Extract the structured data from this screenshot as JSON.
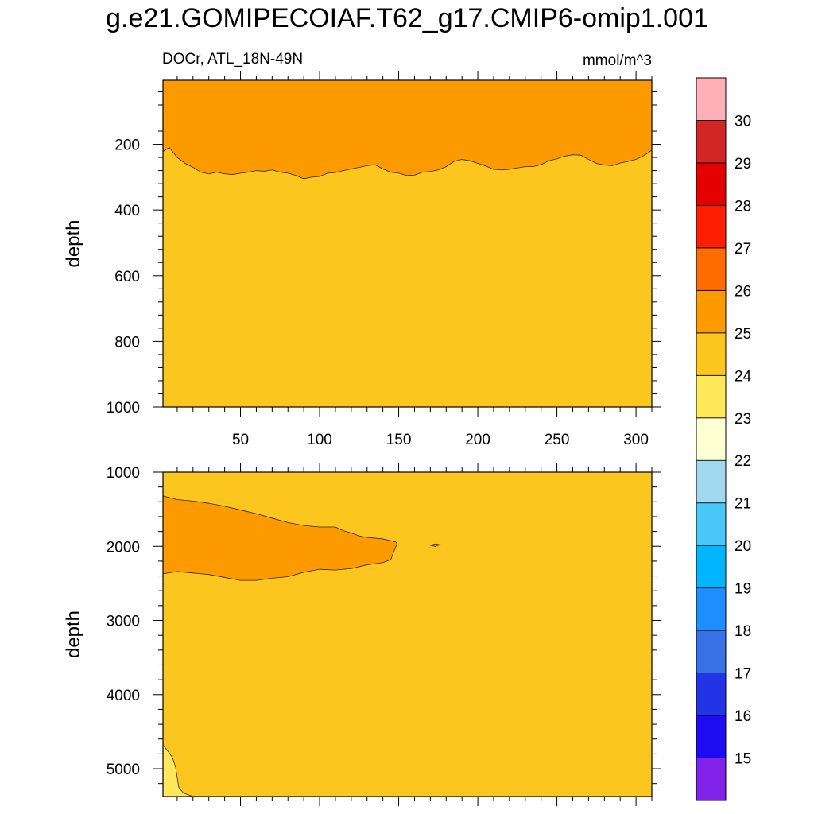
{
  "title": "g.e21.GOMIPECOIAF.T62_g17.CMIP6-omip1.001",
  "subtitle_left": "DOCr, ATL_18N-49N",
  "subtitle_right": "mmol/m^3",
  "colors": {
    "band_23_24": "#ffe85a",
    "band_24_25": "#fcc61f",
    "band_25_26": "#fc9a00",
    "contour_line": "#2a2a2a"
  },
  "chart_data": [
    {
      "type": "contour",
      "panel": "upper",
      "variable": "DOCr",
      "region": "ATL_18N-49N",
      "units": "mmol/m^3",
      "xlabel": "",
      "ylabel": "depth",
      "xlim": [
        1,
        310
      ],
      "ylim": [
        1000,
        5
      ],
      "x_ticks": [
        50,
        100,
        150,
        200,
        250,
        300
      ],
      "x_tick_labels": [
        "50",
        "100",
        "150",
        "200",
        "250",
        "300"
      ],
      "y_ticks": [
        200,
        400,
        600,
        800,
        1000
      ],
      "y_tick_labels": [
        "200",
        "400",
        "600",
        "800",
        "1000"
      ],
      "background_band": "24-25",
      "regions": [
        {
          "band": "25-26",
          "description": "upper layer above 25 contour",
          "lower_boundary_depth": [
            [
              1,
              222
            ],
            [
              5,
              210
            ],
            [
              10,
              240
            ],
            [
              15,
              258
            ],
            [
              20,
              270
            ],
            [
              25,
              285
            ],
            [
              30,
              290
            ],
            [
              35,
              285
            ],
            [
              40,
              290
            ],
            [
              45,
              292
            ],
            [
              50,
              288
            ],
            [
              55,
              285
            ],
            [
              60,
              280
            ],
            [
              65,
              282
            ],
            [
              70,
              278
            ],
            [
              75,
              285
            ],
            [
              80,
              288
            ],
            [
              85,
              295
            ],
            [
              90,
              305
            ],
            [
              95,
              300
            ],
            [
              100,
              298
            ],
            [
              105,
              288
            ],
            [
              110,
              286
            ],
            [
              115,
              280
            ],
            [
              120,
              275
            ],
            [
              125,
              270
            ],
            [
              130,
              265
            ],
            [
              135,
              262
            ],
            [
              140,
              275
            ],
            [
              145,
              285
            ],
            [
              150,
              288
            ],
            [
              155,
              295
            ],
            [
              160,
              294
            ],
            [
              165,
              285
            ],
            [
              170,
              283
            ],
            [
              175,
              278
            ],
            [
              180,
              268
            ],
            [
              185,
              252
            ],
            [
              190,
              246
            ],
            [
              195,
              250
            ],
            [
              200,
              258
            ],
            [
              205,
              266
            ],
            [
              210,
              276
            ],
            [
              215,
              278
            ],
            [
              220,
              276
            ],
            [
              225,
              272
            ],
            [
              230,
              268
            ],
            [
              235,
              268
            ],
            [
              240,
              262
            ],
            [
              245,
              250
            ],
            [
              250,
              244
            ],
            [
              255,
              236
            ],
            [
              260,
              232
            ],
            [
              265,
              233
            ],
            [
              270,
              246
            ],
            [
              275,
              258
            ],
            [
              280,
              263
            ],
            [
              285,
              265
            ],
            [
              290,
              257
            ],
            [
              295,
              252
            ],
            [
              300,
              246
            ],
            [
              305,
              234
            ],
            [
              310,
              218
            ]
          ]
        }
      ]
    },
    {
      "type": "contour",
      "panel": "lower",
      "variable": "DOCr",
      "region": "ATL_18N-49N",
      "units": "mmol/m^3",
      "xlabel": "",
      "ylabel": "depth",
      "xlim": [
        1,
        310
      ],
      "ylim": [
        1000,
        5375
      ],
      "x_ticks": [
        50,
        100,
        150,
        200,
        250,
        300
      ],
      "x_tick_labels": [
        "",
        "",
        "",
        "",
        "",
        ""
      ],
      "y_ticks": [
        1000,
        2000,
        3000,
        4000,
        5000
      ],
      "y_tick_labels": [
        "1000",
        "2000",
        "3000",
        "4000",
        "5000"
      ],
      "background_band": "24-25",
      "regions": [
        {
          "band": "25-26",
          "description": "intermediate-depth tongue",
          "polygon": [
            [
              1,
              1320
            ],
            [
              10,
              1370
            ],
            [
              20,
              1390
            ],
            [
              30,
              1420
            ],
            [
              40,
              1460
            ],
            [
              50,
              1510
            ],
            [
              60,
              1560
            ],
            [
              70,
              1620
            ],
            [
              80,
              1680
            ],
            [
              90,
              1720
            ],
            [
              100,
              1740
            ],
            [
              110,
              1740
            ],
            [
              115,
              1790
            ],
            [
              120,
              1820
            ],
            [
              125,
              1860
            ],
            [
              130,
              1880
            ],
            [
              140,
              1900
            ],
            [
              148,
              1940
            ],
            [
              149,
              1960
            ],
            [
              147,
              2070
            ],
            [
              145,
              2180
            ],
            [
              140,
              2220
            ],
            [
              130,
              2250
            ],
            [
              120,
              2300
            ],
            [
              110,
              2320
            ],
            [
              100,
              2310
            ],
            [
              90,
              2350
            ],
            [
              80,
              2410
            ],
            [
              70,
              2430
            ],
            [
              60,
              2460
            ],
            [
              50,
              2460
            ],
            [
              40,
              2420
            ],
            [
              30,
              2380
            ],
            [
              20,
              2360
            ],
            [
              10,
              2340
            ],
            [
              1,
              2370
            ]
          ]
        },
        {
          "band": "25-26",
          "description": "small isolated patch",
          "polygon": [
            [
              170,
              1985
            ],
            [
              173,
              1968
            ],
            [
              176,
              1978
            ],
            [
              173,
              2002
            ]
          ]
        },
        {
          "band": "23-24",
          "description": "bottom-left corner",
          "polygon": [
            [
              1,
              4680
            ],
            [
              4,
              4760
            ],
            [
              7,
              4850
            ],
            [
              9,
              4980
            ],
            [
              10,
              5120
            ],
            [
              11,
              5250
            ],
            [
              14,
              5330
            ],
            [
              20,
              5375
            ],
            [
              1,
              5375
            ]
          ]
        }
      ]
    },
    {
      "type": "colorbar",
      "levels": [
        15,
        16,
        17,
        18,
        19,
        20,
        21,
        22,
        23,
        24,
        25,
        26,
        27,
        28,
        29,
        30
      ],
      "label_values": [
        "15",
        "16",
        "17",
        "18",
        "19",
        "20",
        "21",
        "22",
        "23",
        "24",
        "25",
        "26",
        "27",
        "28",
        "29",
        "30"
      ],
      "band_colors": [
        "#8122e9",
        "#1d0bf1",
        "#2334e7",
        "#3971e6",
        "#1e8dfe",
        "#01b6ff",
        "#49c8f7",
        "#a2d8ef",
        "#feffd2",
        "#ffe85a",
        "#fcc61f",
        "#fc9a00",
        "#fe6c00",
        "#fd2000",
        "#e50000",
        "#d22525",
        "#feb0b6"
      ]
    }
  ]
}
